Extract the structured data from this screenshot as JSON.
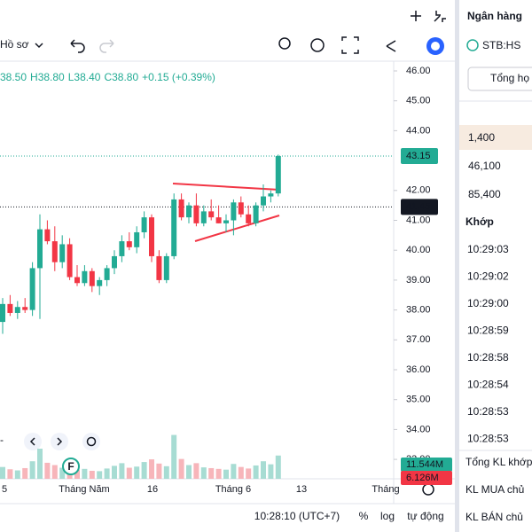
{
  "toolbar": {
    "profile": "Hồ sơ"
  },
  "legend": {
    "open": "38.50",
    "high": "H38.80",
    "low": "L38.40",
    "close": "C38.80",
    "change": "+0.15 (+0.39%)"
  },
  "chart": {
    "price_ticks": [
      {
        "value": 46,
        "label": "46.00"
      },
      {
        "value": 45,
        "label": "45.00"
      },
      {
        "value": 44,
        "label": "44.00"
      },
      {
        "value": 42,
        "label": "42.00"
      },
      {
        "value": 41,
        "label": "41.00"
      },
      {
        "value": 40,
        "label": "40.00"
      },
      {
        "value": 39,
        "label": "39.00"
      },
      {
        "value": 38,
        "label": "38.00"
      },
      {
        "value": 37,
        "label": "37.00"
      },
      {
        "value": 36,
        "label": "36.00"
      },
      {
        "value": 35,
        "label": "35.00"
      },
      {
        "value": 34,
        "label": "34.00"
      },
      {
        "value": 33,
        "label": "33.00"
      }
    ],
    "last_price": 43.15,
    "ref_price": 41.45,
    "volume_badges": [
      "11.544M",
      "6.126M"
    ],
    "marker": "F",
    "open": [
      37.6,
      38.2,
      37.9,
      38.1,
      38.0,
      39.4,
      40.7,
      40.3,
      39.6,
      40.2,
      39.1,
      38.9,
      39.3,
      38.8,
      39.0,
      39.4,
      39.8,
      40.3,
      40.1,
      40.6,
      41.1,
      39.8,
      39.0,
      39.8,
      41.7,
      41.1,
      41.5,
      40.9,
      41.3,
      41.1,
      40.9,
      41.0,
      41.6,
      41.2,
      40.9,
      41.5,
      41.8,
      41.9
    ],
    "high": [
      38.4,
      38.5,
      38.3,
      38.4,
      39.6,
      41.2,
      41.0,
      40.8,
      40.5,
      40.4,
      39.5,
      39.5,
      39.4,
      39.1,
      39.5,
      40.0,
      40.5,
      40.6,
      40.8,
      41.3,
      41.2,
      40.0,
      39.9,
      41.9,
      41.9,
      41.6,
      41.9,
      41.5,
      41.7,
      41.5,
      41.2,
      41.7,
      41.8,
      41.5,
      41.6,
      42.2,
      42.0,
      43.2
    ],
    "low": [
      37.2,
      37.8,
      37.7,
      37.9,
      37.8,
      37.7,
      40.2,
      39.3,
      39.4,
      39.0,
      38.8,
      38.8,
      38.6,
      38.5,
      38.8,
      39.2,
      39.6,
      40.0,
      39.9,
      40.4,
      39.6,
      38.9,
      38.9,
      39.7,
      41.0,
      40.9,
      40.8,
      40.8,
      41.0,
      40.9,
      40.6,
      40.5,
      41.1,
      40.8,
      40.8,
      41.3,
      41.6,
      41.8
    ],
    "close": [
      38.2,
      37.9,
      38.1,
      38.0,
      39.4,
      40.7,
      40.3,
      39.6,
      40.2,
      39.1,
      38.9,
      39.3,
      38.8,
      39.0,
      39.4,
      39.8,
      40.3,
      40.1,
      40.6,
      41.1,
      39.8,
      39.0,
      39.8,
      41.7,
      41.1,
      41.5,
      40.9,
      41.3,
      41.1,
      40.9,
      41.0,
      41.6,
      41.2,
      40.9,
      41.5,
      41.8,
      41.9,
      43.15
    ],
    "volume": [
      3.1,
      2.5,
      2.2,
      2.8,
      4.6,
      7.9,
      4.2,
      3.6,
      2.9,
      3.3,
      2.4,
      2.6,
      2.1,
      2.0,
      2.7,
      3.4,
      4.1,
      2.9,
      3.2,
      4.4,
      5.1,
      4.0,
      3.3,
      11.5,
      5.2,
      3.6,
      4.1,
      3.0,
      2.8,
      2.6,
      2.4,
      3.9,
      3.1,
      2.7,
      3.5,
      4.6,
      3.8,
      6.1
    ],
    "time_labels": [
      "5",
      "Tháng Năm",
      "16",
      "Tháng 6",
      "13",
      "Tháng"
    ]
  },
  "status_bar": {
    "time": "10:28:10 (UTC+7)",
    "percent": "%",
    "log": "log",
    "auto": "tự động"
  },
  "side_panel": {
    "title": "Ngân hàng",
    "symbol": "STB:HS",
    "button": "Tổng họ",
    "book": [
      "1,400",
      "46,100",
      "85,400"
    ],
    "trades_header": "Khớp",
    "trades": [
      "10:29:03",
      "10:29:02",
      "10:29:00",
      "10:28:59",
      "10:28:58",
      "10:28:54",
      "10:28:53",
      "10:28:53"
    ],
    "summary": [
      "Tổng KL khớp",
      "KL MUA chủ",
      "KL BÁN chủ"
    ]
  }
}
